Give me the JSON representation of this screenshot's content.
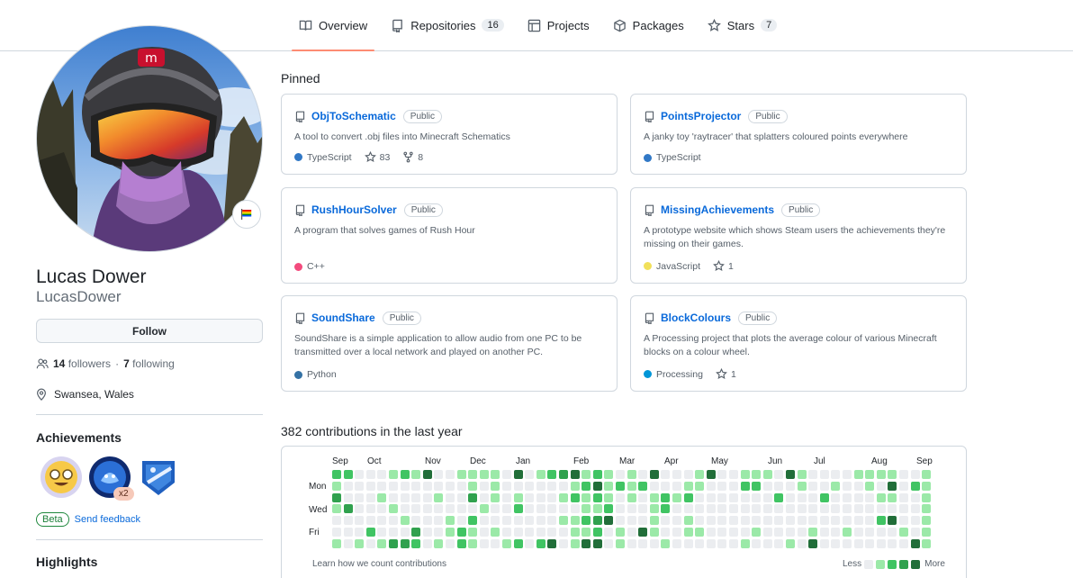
{
  "nav": {
    "tabs": [
      {
        "label": "Overview",
        "icon": "book-icon",
        "active": true
      },
      {
        "label": "Repositories",
        "icon": "repo-icon",
        "count": "16"
      },
      {
        "label": "Projects",
        "icon": "table-icon"
      },
      {
        "label": "Packages",
        "icon": "package-icon"
      },
      {
        "label": "Stars",
        "icon": "star-icon",
        "count": "7"
      }
    ]
  },
  "profile": {
    "name": "Lucas Dower",
    "login": "LucasDower",
    "follow_label": "Follow",
    "followers_count": "14",
    "followers_label": "followers",
    "separator": "·",
    "following_count": "7",
    "following_label": "following",
    "location": "Swansea, Wales",
    "status_icon": "rainbow-flag-icon"
  },
  "achievements": {
    "title": "Achievements",
    "badges": [
      {
        "name": "starstruck-badge"
      },
      {
        "name": "shark-badge",
        "count": "x2"
      },
      {
        "name": "quickdraw-badge"
      }
    ],
    "beta_label": "Beta",
    "feedback_label": "Send feedback"
  },
  "highlights": {
    "title": "Highlights"
  },
  "pinned": {
    "title": "Pinned",
    "repos": [
      {
        "name": "ObjToSchematic",
        "visibility": "Public",
        "description": "A tool to convert .obj files into Minecraft Schematics",
        "language": "TypeScript",
        "lang_color": "#3178c6",
        "stars": "83",
        "forks": "8"
      },
      {
        "name": "PointsProjector",
        "visibility": "Public",
        "description": "A janky toy 'raytracer' that splatters coloured points everywhere",
        "language": "TypeScript",
        "lang_color": "#3178c6"
      },
      {
        "name": "RushHourSolver",
        "visibility": "Public",
        "description": "A program that solves games of Rush Hour",
        "language": "C++",
        "lang_color": "#f34b7d"
      },
      {
        "name": "MissingAchievements",
        "visibility": "Public",
        "description": "A prototype website which shows Steam users the achievements they're missing on their games.",
        "language": "JavaScript",
        "lang_color": "#f1e05a",
        "stars": "1"
      },
      {
        "name": "SoundShare",
        "visibility": "Public",
        "description": "SoundShare is a simple application to allow audio from one PC to be transmitted over a local network and played on another PC.",
        "language": "Python",
        "lang_color": "#3572A5"
      },
      {
        "name": "BlockColours",
        "visibility": "Public",
        "description": "A Processing project that plots the average colour of various Minecraft blocks on a colour wheel.",
        "language": "Processing",
        "lang_color": "#0096D8",
        "stars": "1"
      }
    ]
  },
  "contributions": {
    "title": "382 contributions in the last year",
    "months": [
      "Sep",
      "Oct",
      "Nov",
      "Dec",
      "Jan",
      "Feb",
      "Mar",
      "Apr",
      "May",
      "Jun",
      "Jul",
      "Aug",
      "Sep"
    ],
    "days": [
      "Mon",
      "Wed",
      "Fri"
    ],
    "learn_label": "Learn how we count contributions",
    "less_label": "Less",
    "more_label": "More",
    "level_colors": [
      "#ebedf0",
      "#9be9a8",
      "#40c463",
      "#30a14e",
      "#216e39"
    ]
  }
}
